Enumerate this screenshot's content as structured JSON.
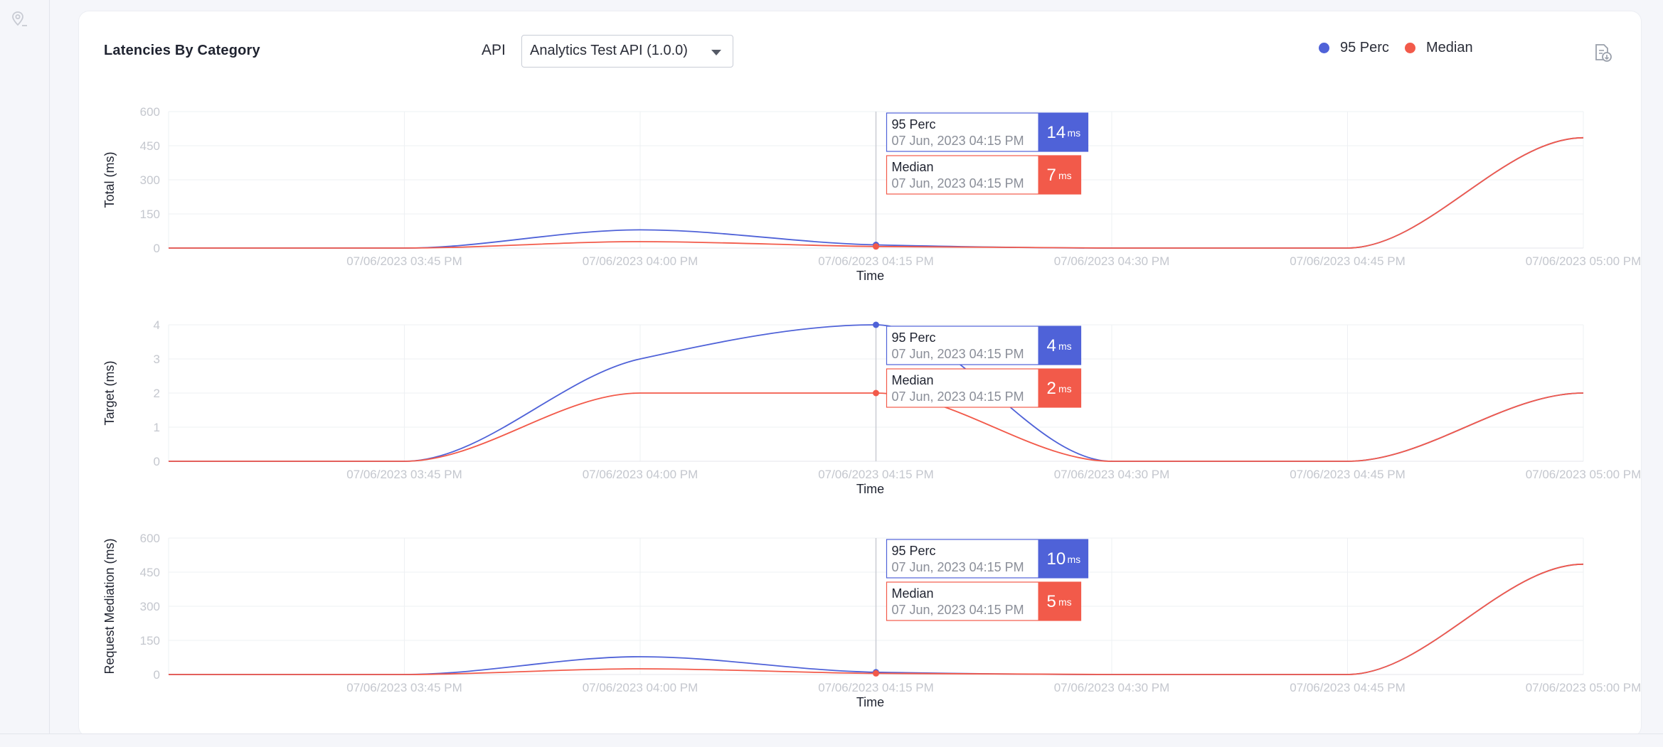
{
  "page": {
    "title": "Latencies By Category",
    "api_label": "API",
    "api_selected": "Analytics Test API (1.0.0)",
    "legend": [
      {
        "name": "95 Perc",
        "color": "#4f62d8"
      },
      {
        "name": "Median",
        "color": "#f25a4a"
      }
    ],
    "icons": {
      "rail": "location-pin-icon",
      "export": "export-document-icon",
      "dropdown": "caret-down-icon"
    }
  },
  "chart_data": [
    {
      "type": "line",
      "ylabel": "Total (ms)",
      "xlabel": "Time",
      "ylim": [
        0,
        600
      ],
      "yticks": [
        0,
        150,
        300,
        450,
        600
      ],
      "x": [
        "07/06/2023 03:30 PM",
        "07/06/2023 03:45 PM",
        "07/06/2023 04:00 PM",
        "07/06/2023 04:15 PM",
        "07/06/2023 04:30 PM",
        "07/06/2023 04:45 PM",
        "07/06/2023 05:00 PM"
      ],
      "x_tick_labels": [
        "07/06/2023 03:45 PM",
        "07/06/2023 04:00 PM",
        "07/06/2023 04:15 PM",
        "07/06/2023 04:30 PM",
        "07/06/2023 04:45 PM",
        "07/06/2023 05:00 PM"
      ],
      "series": [
        {
          "name": "95 Perc",
          "color": "#4f62d8",
          "values": [
            0,
            0,
            80,
            14,
            0,
            0,
            485
          ]
        },
        {
          "name": "Median",
          "color": "#f25a4a",
          "values": [
            0,
            0,
            28,
            7,
            0,
            0,
            485
          ]
        }
      ],
      "grid": true,
      "hover_index": 3,
      "tooltip": [
        {
          "name": "95 Perc",
          "time": "07 Jun, 2023 04:15 PM",
          "value": "14",
          "unit": "ms",
          "color": "#4f62d8"
        },
        {
          "name": "Median",
          "time": "07 Jun, 2023 04:15 PM",
          "value": "7",
          "unit": "ms",
          "color": "#f25a4a"
        }
      ]
    },
    {
      "type": "line",
      "ylabel": "Target (ms)",
      "xlabel": "Time",
      "ylim": [
        0,
        4
      ],
      "yticks": [
        0,
        1,
        2,
        3,
        4
      ],
      "x": [
        "07/06/2023 03:30 PM",
        "07/06/2023 03:45 PM",
        "07/06/2023 04:00 PM",
        "07/06/2023 04:15 PM",
        "07/06/2023 04:30 PM",
        "07/06/2023 04:45 PM",
        "07/06/2023 05:00 PM"
      ],
      "x_tick_labels": [
        "07/06/2023 03:45 PM",
        "07/06/2023 04:00 PM",
        "07/06/2023 04:15 PM",
        "07/06/2023 04:30 PM",
        "07/06/2023 04:45 PM",
        "07/06/2023 05:00 PM"
      ],
      "series": [
        {
          "name": "95 Perc",
          "color": "#4f62d8",
          "values": [
            0,
            0,
            3,
            4,
            0,
            0,
            2
          ]
        },
        {
          "name": "Median",
          "color": "#f25a4a",
          "values": [
            0,
            0,
            2,
            2,
            0,
            0,
            2
          ]
        }
      ],
      "grid": true,
      "hover_index": 3,
      "tooltip": [
        {
          "name": "95 Perc",
          "time": "07 Jun, 2023 04:15 PM",
          "value": "4",
          "unit": "ms",
          "color": "#4f62d8"
        },
        {
          "name": "Median",
          "time": "07 Jun, 2023 04:15 PM",
          "value": "2",
          "unit": "ms",
          "color": "#f25a4a"
        }
      ]
    },
    {
      "type": "line",
      "ylabel": "Request Mediation (ms)",
      "xlabel": "Time",
      "ylim": [
        0,
        600
      ],
      "yticks": [
        0,
        150,
        300,
        450,
        600
      ],
      "x": [
        "07/06/2023 03:30 PM",
        "07/06/2023 03:45 PM",
        "07/06/2023 04:00 PM",
        "07/06/2023 04:15 PM",
        "07/06/2023 04:30 PM",
        "07/06/2023 04:45 PM",
        "07/06/2023 05:00 PM"
      ],
      "x_tick_labels": [
        "07/06/2023 03:45 PM",
        "07/06/2023 04:00 PM",
        "07/06/2023 04:15 PM",
        "07/06/2023 04:30 PM",
        "07/06/2023 04:45 PM",
        "07/06/2023 05:00 PM"
      ],
      "series": [
        {
          "name": "95 Perc",
          "color": "#4f62d8",
          "values": [
            0,
            0,
            78,
            10,
            0,
            0,
            485
          ]
        },
        {
          "name": "Median",
          "color": "#f25a4a",
          "values": [
            0,
            0,
            25,
            5,
            0,
            0,
            485
          ]
        }
      ],
      "grid": true,
      "hover_index": 3,
      "tooltip": [
        {
          "name": "95 Perc",
          "time": "07 Jun, 2023 04:15 PM",
          "value": "10",
          "unit": "ms",
          "color": "#4f62d8"
        },
        {
          "name": "Median",
          "time": "07 Jun, 2023 04:15 PM",
          "value": "5",
          "unit": "ms",
          "color": "#f25a4a"
        }
      ]
    }
  ]
}
